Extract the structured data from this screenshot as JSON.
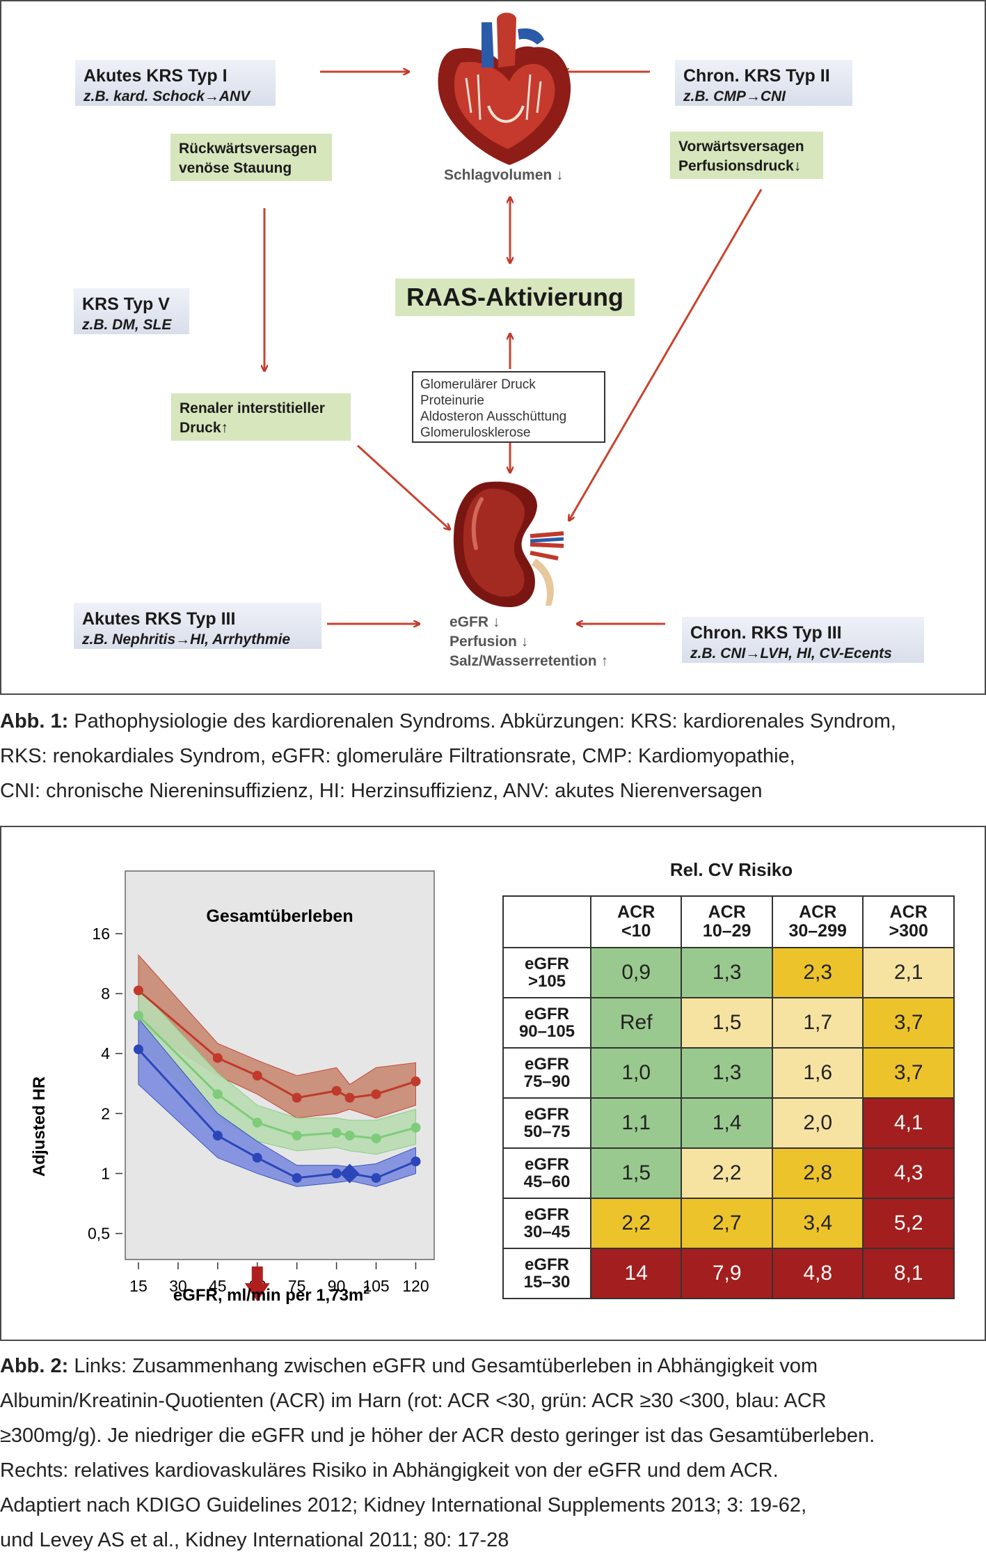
{
  "figure1": {
    "boxes": {
      "krs1": {
        "title": "Akutes KRS Typ I",
        "sub": "z.B. kard. Schock→ANV"
      },
      "krs2": {
        "title": "Chron. KRS Typ II",
        "sub": "z.B. CMP→CNI"
      },
      "krs5": {
        "title": "KRS Typ V",
        "sub": "z.B. DM, SLE"
      },
      "rks3a": {
        "title": "Akutes RKS Typ III",
        "sub": "z.B. Nephritis→HI, Arrhythmie"
      },
      "rks3c": {
        "title": "Chron. RKS Typ III",
        "sub": "z.B. CNI→LVH, HI, CV-Ecents"
      }
    },
    "green": {
      "back": [
        "Rückwärtsversagen",
        "venöse Stauung"
      ],
      "forward": [
        "Vorwärtsversagen",
        "Perfusionsdruck↓"
      ],
      "renal": [
        "Renaler interstitieller",
        "Druck↑"
      ]
    },
    "raas": "RAAS-Aktivierung",
    "heart_label": "Schlagvolumen ↓",
    "kidney_labels": [
      "eGFR ↓",
      "Perfusion ↓",
      "Salz/Wasserretention ↑"
    ],
    "mechanisms": [
      "Glomerulärer Druck",
      "Proteinurie",
      "Aldosteron Ausschüttung",
      "Glomerulosklerose"
    ]
  },
  "caption1": {
    "bold": "Abb. 1:",
    "lines": [
      " Pathophysiologie des kardiorenalen Syndroms. Abkürzungen: KRS: kardiorenales Syndrom,",
      "RKS: renokardiales Syndrom, eGFR: glomeruläre Filtrationsrate, CMP: Kardiomyopathie,",
      "CNI: chronische Niereninsuffizienz, HI: Herzinsuffizienz, ANV: akutes Nierenversagen"
    ]
  },
  "chart_data": {
    "type": "line",
    "title": "Gesamtüberleben",
    "xlabel": "eGFR, ml/min per 1,73m",
    "xlabel_sup": "2",
    "ylabel": "Adjusted HR",
    "y_scale": "log",
    "x_ticks": [
      15,
      30,
      45,
      60,
      75,
      90,
      105,
      120
    ],
    "y_ticks": [
      0.5,
      1,
      2,
      4,
      8,
      16
    ],
    "y_tick_labels": [
      "0,5",
      "1",
      "2",
      "4",
      "8",
      "16"
    ],
    "xlim": [
      10,
      127
    ],
    "ylim": [
      0.37,
      33
    ],
    "marker_arrow_x": 60,
    "reference_point": {
      "x": 95,
      "y": 1.0
    },
    "series": [
      {
        "color": "#c0392b",
        "band": "#c98a72",
        "x": [
          15,
          45,
          60,
          75,
          90,
          95,
          105,
          120
        ],
        "y": [
          8.3,
          3.8,
          3.1,
          2.4,
          2.6,
          2.4,
          2.5,
          2.9
        ],
        "lo": [
          5.6,
          3.1,
          2.5,
          1.9,
          2.0,
          2.1,
          1.9,
          2.2
        ],
        "hi": [
          12.5,
          4.5,
          3.7,
          3.1,
          3.4,
          2.8,
          3.4,
          3.6
        ]
      },
      {
        "color": "#7ecb7a",
        "band": "#b9ddb1",
        "x": [
          15,
          45,
          60,
          75,
          90,
          95,
          105,
          120
        ],
        "y": [
          6.2,
          2.5,
          1.8,
          1.55,
          1.6,
          1.55,
          1.5,
          1.7
        ],
        "lo": [
          4.4,
          1.9,
          1.45,
          1.3,
          1.35,
          1.3,
          1.25,
          1.4
        ],
        "hi": [
          8.6,
          3.2,
          2.2,
          1.9,
          1.9,
          1.85,
          1.85,
          2.1
        ]
      },
      {
        "color": "#2a46b8",
        "band": "#7d8de0",
        "x": [
          15,
          45,
          60,
          75,
          90,
          95,
          105,
          120
        ],
        "y": [
          4.2,
          1.55,
          1.2,
          0.95,
          1.0,
          1.0,
          0.95,
          1.15
        ],
        "lo": [
          2.8,
          1.2,
          1.0,
          0.86,
          0.9,
          0.92,
          0.86,
          1.0
        ],
        "hi": [
          6.0,
          2.0,
          1.45,
          1.1,
          1.1,
          1.08,
          1.12,
          1.35
        ]
      }
    ]
  },
  "risk_table": {
    "title": "Rel. CV Risiko",
    "col_headers": [
      [
        "ACR",
        "<10"
      ],
      [
        "ACR",
        "10–29"
      ],
      [
        "ACR",
        "30–299"
      ],
      [
        "ACR",
        ">300"
      ]
    ],
    "rows": [
      {
        "label": [
          "eGFR",
          ">105"
        ],
        "values": [
          "0,9",
          "1,3",
          "2,3",
          "2,1"
        ],
        "colors": [
          "green",
          "green",
          "yel",
          "lightyel"
        ]
      },
      {
        "label": [
          "eGFR",
          "90–105"
        ],
        "values": [
          "Ref",
          "1,5",
          "1,7",
          "3,7"
        ],
        "colors": [
          "green",
          "lightyel",
          "lightyel",
          "yel"
        ]
      },
      {
        "label": [
          "eGFR",
          "75–90"
        ],
        "values": [
          "1,0",
          "1,3",
          "1,6",
          "3,7"
        ],
        "colors": [
          "green",
          "green",
          "lightyel",
          "yel"
        ]
      },
      {
        "label": [
          "eGFR",
          "50–75"
        ],
        "values": [
          "1,1",
          "1,4",
          "2,0",
          "4,1"
        ],
        "colors": [
          "green",
          "green",
          "lightyel",
          "red"
        ]
      },
      {
        "label": [
          "eGFR",
          "45–60"
        ],
        "values": [
          "1,5",
          "2,2",
          "2,8",
          "4,3"
        ],
        "colors": [
          "green",
          "lightyel",
          "yel",
          "red"
        ]
      },
      {
        "label": [
          "eGFR",
          "30–45"
        ],
        "values": [
          "2,2",
          "2,7",
          "3,4",
          "5,2"
        ],
        "colors": [
          "yel",
          "yel",
          "yel",
          "red"
        ]
      },
      {
        "label": [
          "eGFR",
          "15–30"
        ],
        "values": [
          "14",
          "7,9",
          "4,8",
          "8,1"
        ],
        "colors": [
          "red",
          "red",
          "red",
          "red"
        ]
      }
    ],
    "palette": {
      "green": "#99c98e",
      "lightyel": "#f7e3a1",
      "yel": "#ecc32b",
      "red": "#a31e1e"
    }
  },
  "caption2": {
    "bold": "Abb. 2:",
    "lines": [
      " Links: Zusammenhang zwischen eGFR und Gesamtüberleben in Abhängigkeit vom",
      "Albumin/Kreatinin-Quotienten (ACR) im Harn (rot: ACR <30, grün: ACR ≥30 <300, blau: ACR",
      "≥300mg/g). Je niedriger die eGFR und je höher der ACR desto geringer ist das Gesamtüberleben.",
      "Rechts: relatives kardiovaskuläres Risiko in Abhängigkeit von der eGFR und dem ACR.",
      "Adaptiert nach KDIGO Guidelines 2012; Kidney International Supplements 2013; 3: 19-62,",
      "und Levey AS et al., Kidney International 2011; 80: 17-28"
    ]
  }
}
